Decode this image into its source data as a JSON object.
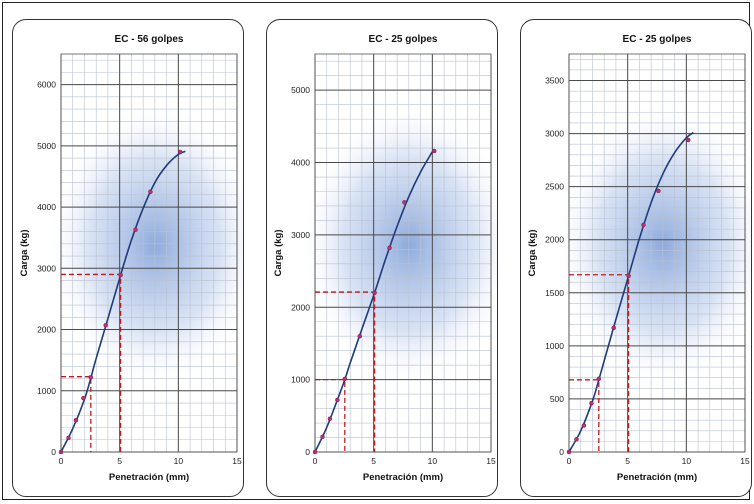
{
  "chart_data": [
    {
      "type": "line",
      "title": "EC - 56 golpes",
      "xlabel": "Penetración (mm)",
      "ylabel": "Carga (kg)",
      "xlim": [
        0,
        15
      ],
      "ylim": [
        0,
        6500
      ],
      "xticks": [
        0,
        5,
        10,
        15
      ],
      "yticks": [
        0,
        1000,
        2000,
        3000,
        4000,
        5000,
        6000
      ],
      "grid": true,
      "points": [
        {
          "x": 0,
          "y": 0
        },
        {
          "x": 0.64,
          "y": 230
        },
        {
          "x": 1.27,
          "y": 520
        },
        {
          "x": 1.91,
          "y": 880
        },
        {
          "x": 2.54,
          "y": 1220
        },
        {
          "x": 3.81,
          "y": 2070
        },
        {
          "x": 5.08,
          "y": 2890
        },
        {
          "x": 6.35,
          "y": 3630
        },
        {
          "x": 7.62,
          "y": 4250
        },
        {
          "x": 10.16,
          "y": 4900
        }
      ],
      "curve": [
        {
          "x": 0,
          "y": 0
        },
        {
          "x": 1,
          "y": 380
        },
        {
          "x": 2,
          "y": 860
        },
        {
          "x": 2.54,
          "y": 1210
        },
        {
          "x": 3,
          "y": 1530
        },
        {
          "x": 4,
          "y": 2180
        },
        {
          "x": 5.08,
          "y": 2890
        },
        {
          "x": 6,
          "y": 3460
        },
        {
          "x": 7,
          "y": 3980
        },
        {
          "x": 8,
          "y": 4400
        },
        {
          "x": 9,
          "y": 4680
        },
        {
          "x": 10,
          "y": 4860
        },
        {
          "x": 10.6,
          "y": 4910
        }
      ],
      "reference_lines": [
        {
          "x": 2.54,
          "y": 1230
        },
        {
          "x": 5.08,
          "y": 2900
        }
      ]
    },
    {
      "type": "line",
      "title": "EC - 25 golpes",
      "xlabel": "Penetración (mm)",
      "ylabel": "Carga (kg)",
      "xlim": [
        0,
        15
      ],
      "ylim": [
        0,
        5500
      ],
      "xticks": [
        0,
        5,
        10,
        15
      ],
      "yticks": [
        0,
        1000,
        2000,
        3000,
        4000,
        5000
      ],
      "grid": true,
      "points": [
        {
          "x": 0,
          "y": 0
        },
        {
          "x": 0.64,
          "y": 210
        },
        {
          "x": 1.27,
          "y": 460
        },
        {
          "x": 1.91,
          "y": 720
        },
        {
          "x": 2.54,
          "y": 1010
        },
        {
          "x": 3.81,
          "y": 1600
        },
        {
          "x": 5.08,
          "y": 2200
        },
        {
          "x": 6.35,
          "y": 2820
        },
        {
          "x": 7.62,
          "y": 3450
        },
        {
          "x": 10.16,
          "y": 4160
        }
      ],
      "curve": [
        {
          "x": 0,
          "y": 0
        },
        {
          "x": 1,
          "y": 340
        },
        {
          "x": 2,
          "y": 760
        },
        {
          "x": 2.54,
          "y": 1000
        },
        {
          "x": 3,
          "y": 1230
        },
        {
          "x": 4,
          "y": 1700
        },
        {
          "x": 5.08,
          "y": 2200
        },
        {
          "x": 6,
          "y": 2660
        },
        {
          "x": 7,
          "y": 3120
        },
        {
          "x": 8,
          "y": 3530
        },
        {
          "x": 9,
          "y": 3870
        },
        {
          "x": 10,
          "y": 4150
        }
      ],
      "reference_lines": [
        {
          "x": 2.54,
          "y": 1000
        },
        {
          "x": 5.08,
          "y": 2210
        }
      ]
    },
    {
      "type": "line",
      "title": "EC - 25 golpes",
      "xlabel": "Penetración (mm)",
      "ylabel": "Carga (kg)",
      "xlim": [
        0,
        15
      ],
      "ylim": [
        0,
        3750
      ],
      "xticks": [
        0,
        5,
        10,
        15
      ],
      "yticks": [
        0,
        500,
        1000,
        1500,
        2000,
        2500,
        3000,
        3500
      ],
      "grid": true,
      "points": [
        {
          "x": 0,
          "y": 0
        },
        {
          "x": 0.64,
          "y": 120
        },
        {
          "x": 1.27,
          "y": 250
        },
        {
          "x": 1.91,
          "y": 460
        },
        {
          "x": 2.54,
          "y": 690
        },
        {
          "x": 3.81,
          "y": 1170
        },
        {
          "x": 5.08,
          "y": 1660
        },
        {
          "x": 6.35,
          "y": 2140
        },
        {
          "x": 7.62,
          "y": 2460
        },
        {
          "x": 10.16,
          "y": 2940
        }
      ],
      "curve": [
        {
          "x": 0,
          "y": 0
        },
        {
          "x": 1,
          "y": 200
        },
        {
          "x": 2,
          "y": 480
        },
        {
          "x": 2.54,
          "y": 680
        },
        {
          "x": 3,
          "y": 860
        },
        {
          "x": 4,
          "y": 1250
        },
        {
          "x": 5.08,
          "y": 1660
        },
        {
          "x": 6,
          "y": 2010
        },
        {
          "x": 7,
          "y": 2350
        },
        {
          "x": 8,
          "y": 2620
        },
        {
          "x": 9,
          "y": 2820
        },
        {
          "x": 10,
          "y": 2960
        },
        {
          "x": 10.6,
          "y": 3010
        }
      ],
      "reference_lines": [
        {
          "x": 2.54,
          "y": 680
        },
        {
          "x": 5.08,
          "y": 1670
        }
      ]
    }
  ]
}
